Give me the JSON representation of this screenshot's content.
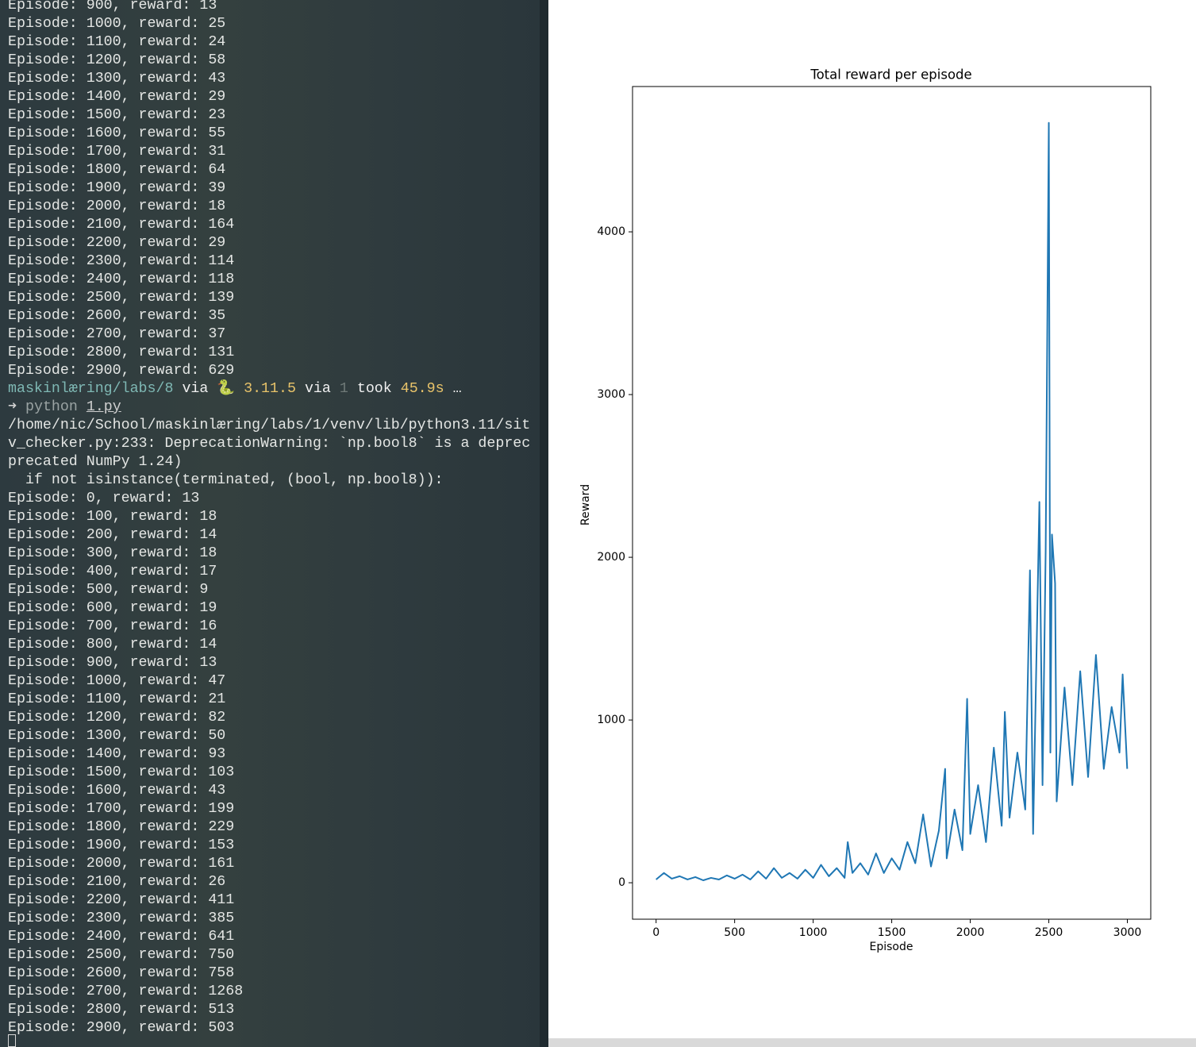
{
  "terminal": {
    "first_block": [
      "Episode: 900, reward: 13",
      "Episode: 1000, reward: 25",
      "Episode: 1100, reward: 24",
      "Episode: 1200, reward: 58",
      "Episode: 1300, reward: 43",
      "Episode: 1400, reward: 29",
      "Episode: 1500, reward: 23",
      "Episode: 1600, reward: 55",
      "Episode: 1700, reward: 31",
      "Episode: 1800, reward: 64",
      "Episode: 1900, reward: 39",
      "Episode: 2000, reward: 18",
      "Episode: 2100, reward: 164",
      "Episode: 2200, reward: 29",
      "Episode: 2300, reward: 114",
      "Episode: 2400, reward: 118",
      "Episode: 2500, reward: 139",
      "Episode: 2600, reward: 35",
      "Episode: 2700, reward: 37",
      "Episode: 2800, reward: 131",
      "Episode: 2900, reward: 629"
    ],
    "prompt": [
      {
        "text": "maskinlæring/labs/8",
        "color": "#7fb8b4"
      },
      {
        "text": "via",
        "color": "#f0f0f0"
      },
      {
        "text": "🐍 3.11.5",
        "color": "#e8c36a"
      },
      {
        "text": "via",
        "color": "#f0f0f0"
      },
      {
        "text": "1",
        "color": "#6f7a78"
      },
      {
        "text": "took",
        "color": "#f0f0f0"
      },
      {
        "text": "45.9s",
        "color": "#e8c36a"
      },
      {
        "text": "…",
        "color": "#f0f0f0"
      }
    ],
    "command": [
      {
        "text": "➜",
        "color": "#d0d0d0"
      },
      {
        "text": "python",
        "color": "#9aa3a3"
      },
      {
        "text": "1.py",
        "color": "#d0d0d0"
      }
    ],
    "warning": [
      "/home/nic/School/maskinlæring/labs/1/venv/lib/python3.11/sit",
      "v_checker.py:233: DeprecationWarning: `np.bool8` is a deprec",
      "precated NumPy 1.24)",
      "  if not isinstance(terminated, (bool, np.bool8)):"
    ],
    "second_block": [
      "Episode: 0, reward: 13",
      "Episode: 100, reward: 18",
      "Episode: 200, reward: 14",
      "Episode: 300, reward: 18",
      "Episode: 400, reward: 17",
      "Episode: 500, reward: 9",
      "Episode: 600, reward: 19",
      "Episode: 700, reward: 16",
      "Episode: 800, reward: 14",
      "Episode: 900, reward: 13",
      "Episode: 1000, reward: 47",
      "Episode: 1100, reward: 21",
      "Episode: 1200, reward: 82",
      "Episode: 1300, reward: 50",
      "Episode: 1400, reward: 93",
      "Episode: 1500, reward: 103",
      "Episode: 1600, reward: 43",
      "Episode: 1700, reward: 199",
      "Episode: 1800, reward: 229",
      "Episode: 1900, reward: 153",
      "Episode: 2000, reward: 161",
      "Episode: 2100, reward: 26",
      "Episode: 2200, reward: 411",
      "Episode: 2300, reward: 385",
      "Episode: 2400, reward: 641",
      "Episode: 2500, reward: 750",
      "Episode: 2600, reward: 758",
      "Episode: 2700, reward: 1268",
      "Episode: 2800, reward: 513",
      "Episode: 2900, reward: 503"
    ]
  },
  "chart_data": {
    "type": "line",
    "title": "Total reward per episode",
    "x_label": "Episode",
    "y_label": "Reward",
    "x": [
      0,
      50,
      100,
      150,
      200,
      250,
      300,
      350,
      400,
      450,
      500,
      550,
      600,
      650,
      700,
      750,
      800,
      850,
      900,
      950,
      1000,
      1050,
      1100,
      1150,
      1200,
      1220,
      1250,
      1300,
      1350,
      1400,
      1450,
      1500,
      1550,
      1600,
      1650,
      1700,
      1750,
      1800,
      1840,
      1850,
      1900,
      1950,
      1980,
      2000,
      2050,
      2100,
      2150,
      2200,
      2220,
      2250,
      2300,
      2350,
      2380,
      2400,
      2440,
      2460,
      2480,
      2500,
      2510,
      2520,
      2540,
      2550,
      2600,
      2650,
      2700,
      2750,
      2800,
      2850,
      2900,
      2950,
      2970,
      2999
    ],
    "series": [
      {
        "color": "#1f77b4",
        "values": [
          20,
          60,
          25,
          40,
          20,
          35,
          15,
          30,
          20,
          45,
          25,
          50,
          20,
          70,
          25,
          90,
          30,
          60,
          25,
          80,
          30,
          110,
          40,
          90,
          30,
          250,
          60,
          120,
          50,
          180,
          60,
          150,
          80,
          250,
          120,
          420,
          100,
          320,
          700,
          150,
          450,
          200,
          1130,
          300,
          600,
          250,
          830,
          350,
          1050,
          400,
          800,
          450,
          1920,
          300,
          2340,
          600,
          2040,
          4670,
          800,
          2140,
          1840,
          500,
          1200,
          600,
          1300,
          650,
          1400,
          700,
          1080,
          800,
          1280,
          700
        ]
      }
    ],
    "xlim": [
      -150,
      3149
    ],
    "ylim": [
      -224,
      4893
    ],
    "xticks": [
      0,
      500,
      1000,
      1500,
      2000,
      2500,
      3000
    ],
    "yticks": [
      0,
      1000,
      2000,
      3000,
      4000
    ]
  }
}
